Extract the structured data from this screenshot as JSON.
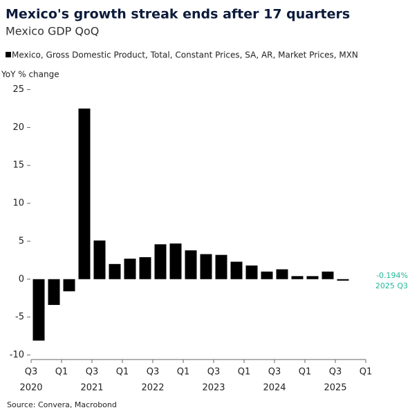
{
  "chart_data": {
    "type": "bar",
    "title": "Mexico's growth streak ends after 17 quarters",
    "subtitle": "Mexico GDP QoQ",
    "y_axis_label": "YoY % change",
    "source": "Source: Convera, Macrobond",
    "categories": [
      null,
      null,
      null,
      null,
      null,
      null,
      null,
      null,
      null,
      null,
      null,
      null,
      null,
      null,
      null,
      null,
      null,
      null,
      null,
      null,
      null
    ],
    "series": [
      {
        "name": "Mexico, Gross Domestic Product, Total, Constant Prices, SA, AR, Market Prices, MXN",
        "color": "#000000",
        "values": [
          -8.1,
          -3.4,
          -1.6,
          22.5,
          5.1,
          2.0,
          2.7,
          2.9,
          4.6,
          4.7,
          3.8,
          3.3,
          3.2,
          2.3,
          1.8,
          1.0,
          1.3,
          0.4,
          0.4,
          1.0,
          -0.194
        ]
      }
    ],
    "last_value_label": {
      "text": "-0.194%",
      "period": "2025 Q3",
      "color": "#1fb89a"
    },
    "xtick_labels": [
      "Q3",
      "Q1",
      "Q3",
      "Q1",
      "Q3",
      "Q1",
      "Q3",
      "Q1",
      "Q3",
      "Q1",
      "Q3",
      "Q1"
    ],
    "year_labels": [
      "2020",
      "2021",
      "2022",
      "2023",
      "2024",
      "2025"
    ],
    "ylim": [
      -10.6,
      25.6
    ],
    "yticks": [
      -10,
      -5,
      0,
      5,
      10,
      15,
      20,
      25
    ],
    "grid": false
  }
}
